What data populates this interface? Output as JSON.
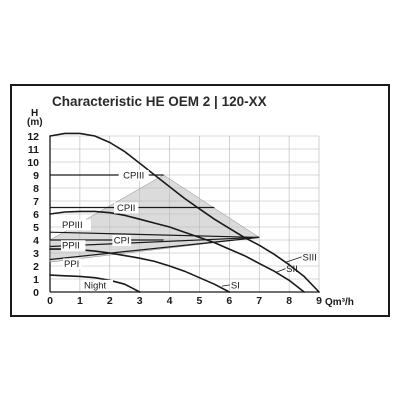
{
  "chart_data": {
    "type": "line",
    "title": "Characteristic HE OEM 2 | 120-XX",
    "ylabel_top": "H",
    "ylabel_unit": "(m)",
    "xlabel": "Qm³/h",
    "xlim": [
      0,
      9
    ],
    "ylim": [
      0,
      12
    ],
    "x_ticks": [
      "0",
      "1",
      "2",
      "3",
      "4",
      "5",
      "6",
      "7",
      "8",
      "9"
    ],
    "y_ticks": [
      "0",
      "1",
      "2",
      "3",
      "4",
      "5",
      "6",
      "7",
      "8",
      "9",
      "10",
      "11",
      "12"
    ],
    "grid": true,
    "series": [
      {
        "name": "SIII",
        "x": [
          0,
          0.5,
          1,
          1.5,
          2,
          2.5,
          3,
          3.5,
          4,
          4.5,
          5,
          5.5,
          6,
          6.5,
          7,
          7.5,
          8,
          8.5,
          9
        ],
        "y": [
          12,
          12.2,
          12.2,
          12,
          11.5,
          10.8,
          9.9,
          9,
          8.1,
          7.2,
          6.4,
          5.6,
          4.9,
          4.2,
          3.6,
          2.9,
          2.1,
          1.2,
          0
        ]
      },
      {
        "name": "SII",
        "x": [
          0,
          0.5,
          1,
          1.5,
          2,
          2.5,
          3,
          3.5,
          4,
          4.5,
          5,
          5.5,
          6,
          6.5,
          7,
          7.5,
          8,
          8.5
        ],
        "y": [
          6,
          6.15,
          6.2,
          6.2,
          6.1,
          5.9,
          5.6,
          5.3,
          5,
          4.6,
          4.2,
          3.8,
          3.3,
          2.8,
          2.2,
          1.6,
          0.9,
          0
        ]
      },
      {
        "name": "SI",
        "x": [
          0,
          0.5,
          1,
          1.5,
          2,
          2.5,
          3,
          3.5,
          4,
          4.5,
          5,
          5.5,
          6
        ],
        "y": [
          3.3,
          3.3,
          3.25,
          3.15,
          3,
          2.8,
          2.6,
          2.35,
          2,
          1.6,
          1.1,
          0.6,
          0
        ]
      },
      {
        "name": "Night",
        "x": [
          0,
          0.5,
          1,
          1.5,
          2,
          2.5,
          3
        ],
        "y": [
          1.3,
          1.25,
          1.2,
          1.1,
          0.9,
          0.6,
          0
        ]
      }
    ],
    "constant_pressure": [
      {
        "name": "CPIII",
        "x": [
          0,
          3.8
        ],
        "y": [
          9,
          9
        ]
      },
      {
        "name": "CPII",
        "x": [
          0,
          5.5
        ],
        "y": [
          6.5,
          6.5
        ]
      },
      {
        "name": "CPI",
        "x": [
          0,
          3.8
        ],
        "y": [
          4,
          4
        ]
      }
    ],
    "proportional_pressure": [
      {
        "name": "PPIII",
        "x": [
          0,
          7
        ],
        "y": [
          4.6,
          4.2
        ]
      },
      {
        "name": "PPII",
        "x": [
          0,
          7
        ],
        "y": [
          3.5,
          4.2
        ]
      },
      {
        "name": "PPI",
        "x": [
          0,
          7
        ],
        "y": [
          2.5,
          4.2
        ]
      }
    ],
    "control_zone": {
      "x": [
        0,
        3.8,
        7,
        0
      ],
      "y": [
        4,
        9,
        4.2,
        2.3
      ]
    }
  }
}
